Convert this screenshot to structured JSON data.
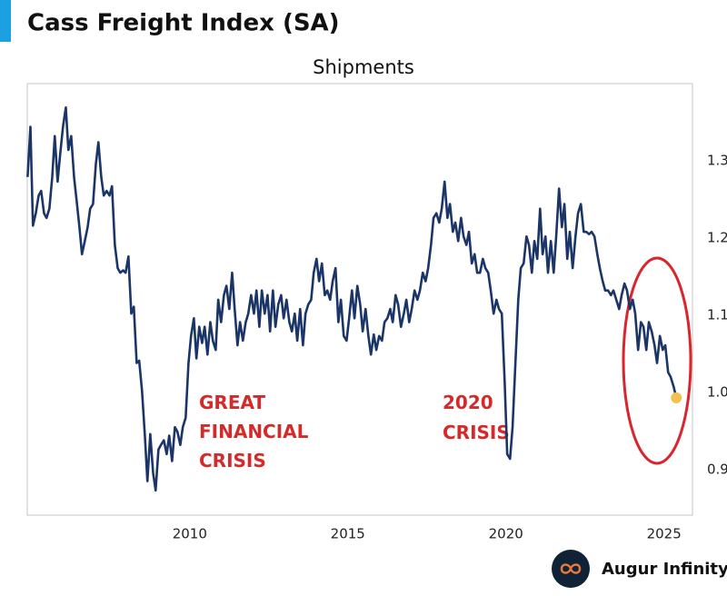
{
  "chart_data": {
    "type": "line",
    "title": "Cass Freight Index (SA)",
    "subtitle": "Shipments",
    "x": [
      2004.87,
      2004.96,
      2005.04,
      2005.13,
      2005.22,
      2005.3,
      2005.39,
      2005.47,
      2005.56,
      2005.65,
      2005.73,
      2005.82,
      2005.9,
      2005.99,
      2006.08,
      2006.16,
      2006.25,
      2006.34,
      2006.42,
      2006.51,
      2006.59,
      2006.68,
      2006.77,
      2006.85,
      2006.94,
      2007.03,
      2007.11,
      2007.2,
      2007.28,
      2007.37,
      2007.46,
      2007.54,
      2007.63,
      2007.72,
      2007.8,
      2007.89,
      2007.97,
      2008.06,
      2008.15,
      2008.23,
      2008.32,
      2008.4,
      2008.49,
      2008.58,
      2008.66,
      2008.75,
      2008.84,
      2008.92,
      2009.01,
      2009.09,
      2009.18,
      2009.27,
      2009.35,
      2009.44,
      2009.53,
      2009.61,
      2009.7,
      2009.78,
      2009.87,
      2009.96,
      2010.04,
      2010.13,
      2010.21,
      2010.3,
      2010.39,
      2010.47,
      2010.56,
      2010.65,
      2010.73,
      2010.82,
      2010.9,
      2010.99,
      2011.08,
      2011.16,
      2011.25,
      2011.34,
      2011.42,
      2011.51,
      2011.59,
      2011.68,
      2011.77,
      2011.85,
      2011.94,
      2012.03,
      2012.11,
      2012.2,
      2012.28,
      2012.37,
      2012.46,
      2012.54,
      2012.63,
      2012.71,
      2012.8,
      2012.89,
      2012.97,
      2013.06,
      2013.15,
      2013.23,
      2013.32,
      2013.4,
      2013.49,
      2013.58,
      2013.66,
      2013.75,
      2013.84,
      2013.92,
      2014.01,
      2014.09,
      2014.18,
      2014.27,
      2014.35,
      2014.44,
      2014.52,
      2014.61,
      2014.7,
      2014.78,
      2014.87,
      2014.96,
      2015.04,
      2015.13,
      2015.21,
      2015.3,
      2015.39,
      2015.47,
      2015.56,
      2015.65,
      2015.73,
      2015.82,
      2015.9,
      2015.99,
      2016.08,
      2016.16,
      2016.25,
      2016.34,
      2016.42,
      2016.51,
      2016.59,
      2016.68,
      2016.77,
      2016.85,
      2016.94,
      2017.02,
      2017.11,
      2017.2,
      2017.28,
      2017.37,
      2017.46,
      2017.54,
      2017.63,
      2017.71,
      2017.8,
      2017.89,
      2017.97,
      2018.06,
      2018.15,
      2018.23,
      2018.32,
      2018.4,
      2018.49,
      2018.58,
      2018.66,
      2018.75,
      2018.83,
      2018.92,
      2019.01,
      2019.09,
      2019.18,
      2019.27,
      2019.35,
      2019.44,
      2019.52,
      2019.61,
      2019.7,
      2019.78,
      2019.87,
      2019.96,
      2020.04,
      2020.13,
      2020.21,
      2020.3,
      2020.39,
      2020.47,
      2020.56,
      2020.65,
      2020.73,
      2020.82,
      2020.9,
      2020.99,
      2021.08,
      2021.16,
      2021.25,
      2021.33,
      2021.42,
      2021.51,
      2021.59,
      2021.68,
      2021.77,
      2021.85,
      2021.94,
      2022.02,
      2022.11,
      2022.2,
      2022.28,
      2022.37,
      2022.46,
      2022.54,
      2022.63,
      2022.71,
      2022.8,
      2022.89,
      2022.97,
      2023.06,
      2023.14,
      2023.23,
      2023.32,
      2023.4,
      2023.49,
      2023.58,
      2023.66,
      2023.75,
      2023.83,
      2023.92,
      2024.01,
      2024.09,
      2024.18,
      2024.27,
      2024.35,
      2024.44,
      2024.52,
      2024.61,
      2024.7,
      2024.78,
      2024.87,
      2024.96,
      2025.04,
      2025.13,
      2025.21,
      2025.3,
      2025.39
    ],
    "values": [
      1.279,
      1.344,
      1.216,
      1.232,
      1.255,
      1.261,
      1.232,
      1.226,
      1.238,
      1.279,
      1.332,
      1.273,
      1.308,
      1.344,
      1.369,
      1.314,
      1.332,
      1.279,
      1.249,
      1.214,
      1.179,
      1.196,
      1.214,
      1.238,
      1.244,
      1.296,
      1.324,
      1.279,
      1.255,
      1.261,
      1.255,
      1.267,
      1.191,
      1.161,
      1.155,
      1.158,
      1.155,
      1.176,
      1.102,
      1.111,
      1.038,
      1.041,
      1.002,
      0.944,
      0.885,
      0.946,
      0.896,
      0.873,
      0.926,
      0.932,
      0.938,
      0.92,
      0.944,
      0.911,
      0.955,
      0.949,
      0.932,
      0.955,
      0.967,
      1.038,
      1.073,
      1.096,
      1.044,
      1.085,
      1.064,
      1.085,
      1.049,
      1.091,
      1.067,
      1.055,
      1.12,
      1.091,
      1.126,
      1.138,
      1.108,
      1.155,
      1.108,
      1.061,
      1.091,
      1.067,
      1.091,
      1.102,
      1.126,
      1.102,
      1.132,
      1.085,
      1.132,
      1.102,
      1.126,
      1.079,
      1.132,
      1.085,
      1.114,
      1.126,
      1.096,
      1.12,
      1.091,
      1.079,
      1.102,
      1.067,
      1.108,
      1.061,
      1.102,
      1.114,
      1.12,
      1.155,
      1.173,
      1.144,
      1.167,
      1.126,
      1.132,
      1.12,
      1.144,
      1.161,
      1.091,
      1.12,
      1.073,
      1.067,
      1.096,
      1.132,
      1.096,
      1.138,
      1.114,
      1.079,
      1.108,
      1.073,
      1.049,
      1.075,
      1.055,
      1.073,
      1.067,
      1.091,
      1.096,
      1.108,
      1.091,
      1.126,
      1.114,
      1.085,
      1.102,
      1.12,
      1.091,
      1.108,
      1.132,
      1.12,
      1.132,
      1.155,
      1.144,
      1.161,
      1.191,
      1.226,
      1.232,
      1.22,
      1.238,
      1.273,
      1.226,
      1.244,
      1.208,
      1.22,
      1.196,
      1.226,
      1.202,
      1.191,
      1.208,
      1.167,
      1.179,
      1.155,
      1.155,
      1.173,
      1.161,
      1.155,
      1.132,
      1.102,
      1.12,
      1.108,
      1.102,
      1.014,
      0.92,
      0.914,
      0.955,
      1.038,
      1.12,
      1.161,
      1.167,
      1.202,
      1.191,
      1.155,
      1.196,
      1.173,
      1.238,
      1.179,
      1.202,
      1.155,
      1.196,
      1.155,
      1.202,
      1.264,
      1.214,
      1.244,
      1.173,
      1.208,
      1.161,
      1.202,
      1.232,
      1.244,
      1.208,
      1.208,
      1.205,
      1.208,
      1.202,
      1.179,
      1.161,
      1.144,
      1.132,
      1.132,
      1.126,
      1.132,
      1.12,
      1.108,
      1.126,
      1.141,
      1.132,
      1.108,
      1.12,
      1.102,
      1.055,
      1.091,
      1.085,
      1.055,
      1.091,
      1.079,
      1.061,
      1.038,
      1.073,
      1.055,
      1.061,
      1.026,
      1.02,
      1.008,
      0.993
    ],
    "color": "#1b3567",
    "end_marker_color": "#f2c14e",
    "xlim": [
      2004.86,
      2025.9
    ],
    "xticks": [
      2010,
      2015,
      2020,
      2025
    ],
    "ylim": [
      0.841,
      1.4
    ],
    "yticks": [
      0.9,
      {
        "value": 1,
        "label": "1.0"
      },
      1.1,
      1.2,
      1.3
    ],
    "y_axis_side": "right",
    "grid": false,
    "annotations": [
      [
        "GREAT",
        "FINANCIAL",
        "CRISIS"
      ],
      [
        "2020",
        "CRISIS"
      ]
    ]
  },
  "brand": "Augur Infinity"
}
